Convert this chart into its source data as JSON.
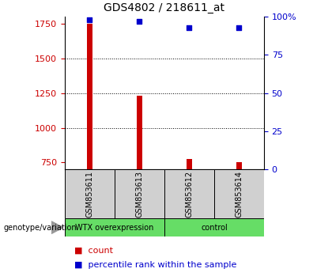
{
  "title": "GDS4802 / 218611_at",
  "samples": [
    "GSM853611",
    "GSM853613",
    "GSM853612",
    "GSM853614"
  ],
  "counts": [
    1750,
    1230,
    775,
    753
  ],
  "percentiles": [
    98,
    97,
    93,
    93
  ],
  "bar_color": "#cc0000",
  "dot_color": "#0000cc",
  "ylim_left": [
    700,
    1800
  ],
  "ylim_right": [
    0,
    100
  ],
  "yticks_left": [
    750,
    1000,
    1250,
    1500,
    1750
  ],
  "yticks_right": [
    0,
    25,
    50,
    75,
    100
  ],
  "ytick_right_labels": [
    "0",
    "25",
    "50",
    "75",
    "100%"
  ],
  "grid_values": [
    1000,
    1250,
    1500
  ],
  "bar_width": 0.12,
  "sample_label_bg": "#d0d0d0",
  "wtx_color": "#66dd66",
  "ctrl_color": "#66dd66",
  "title_fontsize": 10,
  "axis_fontsize": 8,
  "legend_fontsize": 8,
  "left_tick_color": "#cc0000",
  "right_tick_color": "#0000cc",
  "genotype_label": "genotype/variation",
  "wtx_label": "WTX overexpression",
  "ctrl_label": "control",
  "legend_count": "count",
  "legend_pct": "percentile rank within the sample"
}
